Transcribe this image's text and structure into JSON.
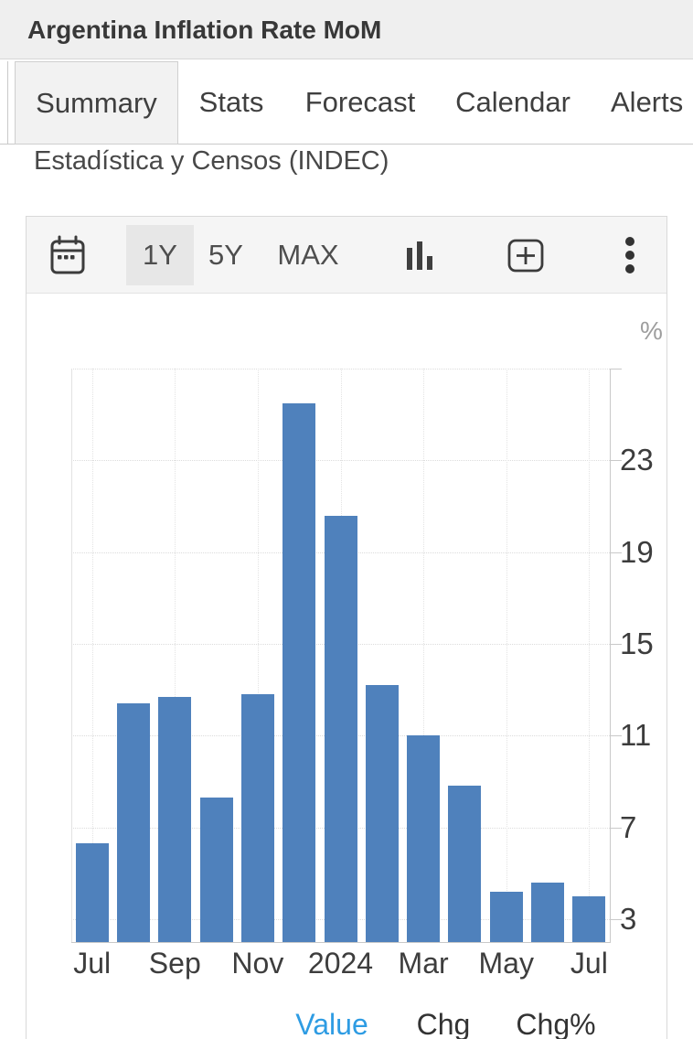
{
  "header": {
    "title": "Argentina Inflation Rate MoM"
  },
  "tabs": {
    "items": [
      {
        "label": "Summary",
        "active": true
      },
      {
        "label": "Stats",
        "active": false
      },
      {
        "label": "Forecast",
        "active": false
      },
      {
        "label": "Calendar",
        "active": false
      },
      {
        "label": "Alerts",
        "active": false
      }
    ]
  },
  "source_line": "Estadística y Censos (INDEC)",
  "toolbar": {
    "ranges": [
      "1Y",
      "5Y",
      "MAX"
    ],
    "active_range": "1Y",
    "icons": [
      "calendar-icon",
      "column-chart-type-icon",
      "add-to-chart-icon",
      "kebab-menu-icon"
    ]
  },
  "legend": {
    "items": [
      {
        "label": "Value",
        "active": true
      },
      {
        "label": "Chg",
        "active": false
      },
      {
        "label": "Chg%",
        "active": false
      }
    ]
  },
  "colors": {
    "bar": "#4f81bc",
    "legend_active": "#2e9ce3",
    "legend_inactive": "#333333",
    "grid": "#dcdcdc",
    "axis": "#c9c9c9"
  },
  "chart_data": {
    "type": "bar",
    "title": "Argentina Inflation Rate MoM",
    "unit": "%",
    "categories": [
      "Jul 2023",
      "Aug 2023",
      "Sep 2023",
      "Oct 2023",
      "Nov 2023",
      "Dec 2023",
      "Jan 2024",
      "Feb 2024",
      "Mar 2024",
      "Apr 2024",
      "May 2024",
      "Jun 2024",
      "Jul 2024"
    ],
    "values": [
      6.3,
      12.4,
      12.7,
      8.3,
      12.8,
      25.5,
      20.6,
      13.2,
      11.0,
      8.8,
      4.2,
      4.6,
      4.0
    ],
    "ylim": [
      2,
      27
    ],
    "yticks": [
      23,
      19,
      15,
      11,
      7,
      3
    ],
    "grid_values": [
      27,
      23,
      19,
      15,
      11,
      7,
      3
    ],
    "xticks": [
      {
        "index": 0,
        "label": "Jul"
      },
      {
        "index": 2,
        "label": "Sep"
      },
      {
        "index": 4,
        "label": "Nov"
      },
      {
        "index": 6,
        "label": "2024"
      },
      {
        "index": 8,
        "label": "Mar"
      },
      {
        "index": 10,
        "label": "May"
      },
      {
        "index": 12,
        "label": "Jul"
      }
    ],
    "grid": true,
    "legend_position": "bottom",
    "xlabel": "",
    "ylabel": "%"
  }
}
